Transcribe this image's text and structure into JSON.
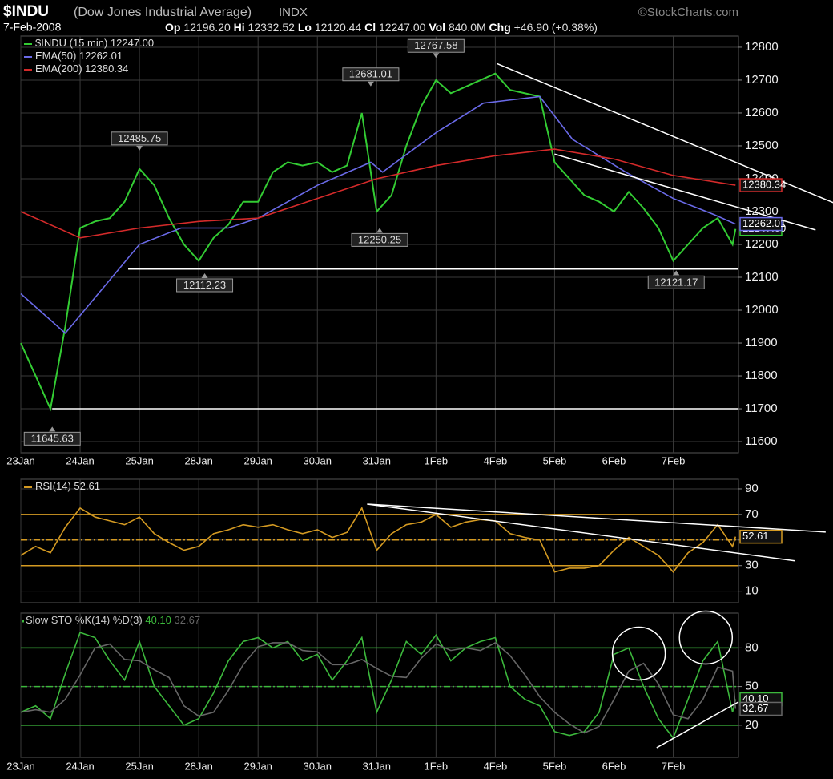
{
  "header": {
    "symbol": "$INDU",
    "name": "(Dow Jones Industrial Average)",
    "exchange": "INDX",
    "source": "©StockCharts.com",
    "date": "7-Feb-2008",
    "stats": [
      {
        "label": "Op",
        "value": "12196.20"
      },
      {
        "label": "Hi",
        "value": "12332.52"
      },
      {
        "label": "Lo",
        "value": "12120.44"
      },
      {
        "label": "Cl",
        "value": "12247.00"
      },
      {
        "label": "Vol",
        "value": "840.0M"
      },
      {
        "label": "Chg",
        "value": "+46.90 (+0.38%)"
      }
    ]
  },
  "chart_data": [
    {
      "type": "line",
      "x": [
        0,
        0.25,
        0.5,
        0.75,
        1,
        1.25,
        1.5,
        1.75,
        2,
        2.25,
        2.5,
        2.75,
        3,
        3.25,
        3.5,
        3.75,
        4,
        4.25,
        4.5,
        4.75,
        5,
        5.25,
        5.5,
        5.75,
        6,
        6.25,
        6.5,
        6.75,
        7,
        7.25,
        7.5,
        7.75,
        8,
        8.25,
        8.5,
        8.75,
        9,
        9.25,
        9.5,
        9.75,
        10,
        10.25,
        10.5,
        10.75,
        11,
        11.25,
        11.5,
        11.75,
        12,
        12.05
      ],
      "series": [
        {
          "name": "$INDU (15 min)",
          "color": "#33cc33",
          "last_label": "12247.00",
          "values": [
            11900,
            11800,
            11700,
            11950,
            12250,
            12270,
            12280,
            12330,
            12430,
            12380,
            12280,
            12200,
            12150,
            12220,
            12260,
            12330,
            12330,
            12420,
            12450,
            12440,
            12450,
            12420,
            12440,
            12600,
            12300,
            12350,
            12500,
            12620,
            12700,
            12660,
            12680,
            12700,
            12720,
            12670,
            12660,
            12650,
            12450,
            12400,
            12350,
            12330,
            12300,
            12360,
            12310,
            12250,
            12150,
            12200,
            12250,
            12280,
            12200,
            12247
          ]
        },
        {
          "name": "EMA(50)",
          "color": "#6a6ae8",
          "last_label": "12262.01",
          "x": [
            0,
            0.75,
            2,
            2.7,
            3.5,
            4,
            5,
            5.9,
            6.1,
            7,
            7.8,
            8.75,
            9.3,
            10.2,
            11,
            11.7,
            12.05
          ],
          "values": [
            12050,
            11930,
            12200,
            12250,
            12250,
            12280,
            12380,
            12450,
            12420,
            12540,
            12630,
            12650,
            12520,
            12420,
            12340,
            12290,
            12262.01
          ]
        },
        {
          "name": "EMA(200)",
          "color": "#d42a2a",
          "last_label": "12380.34",
          "x": [
            0,
            1,
            2,
            3,
            4,
            5,
            6,
            7,
            8,
            9,
            10,
            11,
            12.05
          ],
          "values": [
            12300,
            12220,
            12250,
            12270,
            12280,
            12340,
            12400,
            12440,
            12470,
            12490,
            12460,
            12410,
            12380.34
          ]
        }
      ],
      "xlim": [
        0,
        12.1
      ],
      "ylim": [
        11566,
        12834
      ],
      "yticks": [
        11600,
        11700,
        11800,
        11900,
        12000,
        12100,
        12200,
        12300,
        12400,
        12500,
        12600,
        12700,
        12800
      ],
      "xticks": [
        {
          "value": 0,
          "label": "23Jan"
        },
        {
          "value": 1,
          "label": "24Jan"
        },
        {
          "value": 2,
          "label": "25Jan"
        },
        {
          "value": 3,
          "label": "28Jan"
        },
        {
          "value": 4,
          "label": "29Jan"
        },
        {
          "value": 5,
          "label": "30Jan"
        },
        {
          "value": 6,
          "label": "31Jan"
        },
        {
          "value": 7,
          "label": "1Feb"
        },
        {
          "value": 8,
          "label": "4Feb"
        },
        {
          "value": 9,
          "label": "5Feb"
        },
        {
          "value": 10,
          "label": "6Feb"
        },
        {
          "value": 11,
          "label": "7Feb"
        }
      ],
      "xtick_labels": true,
      "grid": true,
      "annotations": [
        {
          "x": 7.0,
          "y": 12767.58,
          "position": "above"
        },
        {
          "x": 5.9,
          "y": 12681.01,
          "position": "above"
        },
        {
          "x": 2.0,
          "y": 12485.75,
          "position": "above"
        },
        {
          "x": 6.05,
          "y": 12250.25,
          "position": "below"
        },
        {
          "x": 3.1,
          "y": 12112.23,
          "position": "below"
        },
        {
          "x": 0.53,
          "y": 11645.63,
          "position": "below"
        },
        {
          "x": 11.05,
          "y": 12121.17,
          "position": "below"
        }
      ],
      "trendlines": [
        {
          "x": [
            8.03,
            13.7
          ],
          "y": [
            12750,
            12327
          ]
        },
        {
          "x": [
            9.0,
            13.4
          ],
          "y": [
            12475,
            12244
          ]
        },
        {
          "x": [
            1.81,
            12.1
          ],
          "y": [
            12125,
            12125
          ]
        },
        {
          "x": [
            0.53,
            12.1
          ],
          "y": [
            11700,
            11700
          ]
        }
      ]
    },
    {
      "type": "line",
      "x": [
        0,
        0.25,
        0.5,
        0.75,
        1,
        1.25,
        1.5,
        1.75,
        2,
        2.25,
        2.5,
        2.75,
        3,
        3.25,
        3.5,
        3.75,
        4,
        4.25,
        4.5,
        4.75,
        5,
        5.25,
        5.5,
        5.75,
        6,
        6.25,
        6.5,
        6.75,
        7,
        7.25,
        7.5,
        7.75,
        8,
        8.25,
        8.5,
        8.75,
        9,
        9.25,
        9.5,
        9.75,
        10,
        10.25,
        10.5,
        10.75,
        11,
        11.25,
        11.5,
        11.75,
        12,
        12.05
      ],
      "series": [
        {
          "name": "RSI(14)",
          "color": "#d49a22",
          "last_label": "52.61",
          "values": [
            38,
            45,
            40,
            60,
            75,
            68,
            65,
            62,
            68,
            55,
            48,
            42,
            45,
            55,
            58,
            62,
            60,
            62,
            58,
            55,
            58,
            52,
            56,
            75,
            42,
            55,
            62,
            64,
            70,
            60,
            64,
            66,
            65,
            55,
            52,
            50,
            25,
            28,
            28,
            30,
            42,
            52,
            45,
            38,
            25,
            40,
            48,
            62,
            45,
            52.61
          ]
        }
      ],
      "xlim": [
        0,
        12.1
      ],
      "ylim": [
        1,
        97.5
      ],
      "yticks": [
        10,
        30,
        50,
        70,
        90
      ],
      "xticks": [
        {
          "value": 0,
          "label": "23Jan"
        },
        {
          "value": 1,
          "label": "24Jan"
        },
        {
          "value": 2,
          "label": "25Jan"
        },
        {
          "value": 3,
          "label": "28Jan"
        },
        {
          "value": 4,
          "label": "29Jan"
        },
        {
          "value": 5,
          "label": "30Jan"
        },
        {
          "value": 6,
          "label": "31Jan"
        },
        {
          "value": 7,
          "label": "1Feb"
        },
        {
          "value": 8,
          "label": "4Feb"
        },
        {
          "value": 9,
          "label": "5Feb"
        },
        {
          "value": 10,
          "label": "6Feb"
        },
        {
          "value": 11,
          "label": "7Feb"
        }
      ],
      "xtick_labels": false,
      "grid": true,
      "reference_color": "#d49a22",
      "reference_lines": [
        {
          "value": 70,
          "style": "solid"
        },
        {
          "value": 50,
          "style": "dashed"
        },
        {
          "value": 30,
          "style": "solid"
        }
      ],
      "trendlines": [
        {
          "x": [
            5.84,
            13.57
          ],
          "y": [
            78.1,
            56.25
          ]
        },
        {
          "x": [
            5.84,
            13.05
          ],
          "y": [
            78.1,
            33.75
          ]
        }
      ]
    },
    {
      "type": "line",
      "title": "Slow STO",
      "x": [
        0,
        0.25,
        0.5,
        0.75,
        1,
        1.25,
        1.5,
        1.75,
        2,
        2.25,
        2.5,
        2.75,
        3,
        3.25,
        3.5,
        3.75,
        4,
        4.25,
        4.5,
        4.75,
        5,
        5.25,
        5.5,
        5.75,
        6,
        6.25,
        6.5,
        6.75,
        7,
        7.25,
        7.5,
        7.75,
        8,
        8.25,
        8.5,
        8.75,
        9,
        9.25,
        9.5,
        9.75,
        10,
        10.25,
        10.5,
        10.75,
        11,
        11.25,
        11.5,
        11.75,
        12,
        12.05
      ],
      "series": [
        {
          "name": "%K(14)",
          "color": "#3cb83c",
          "last_label": "40.10",
          "values": [
            30,
            35,
            25,
            60,
            92,
            88,
            70,
            55,
            85,
            50,
            35,
            20,
            25,
            45,
            70,
            85,
            88,
            80,
            85,
            70,
            75,
            55,
            70,
            88,
            30,
            55,
            85,
            75,
            90,
            70,
            80,
            85,
            88,
            50,
            40,
            35,
            15,
            12,
            15,
            30,
            75,
            80,
            50,
            25,
            10,
            40,
            70,
            85,
            30,
            40.1
          ]
        },
        {
          "name": "%D(3)",
          "color": "#666666",
          "last_label": "32.67",
          "values": [
            30,
            32,
            30,
            40,
            59,
            80,
            83,
            71,
            70,
            63,
            57,
            35,
            27,
            30,
            47,
            67,
            81,
            84,
            84,
            78,
            77,
            67,
            67,
            71,
            64,
            58,
            57,
            72,
            83,
            78,
            80,
            78,
            84,
            74,
            59,
            42,
            30,
            21,
            14,
            19,
            40,
            62,
            68,
            52,
            28,
            25,
            40,
            65,
            62,
            32.67
          ]
        }
      ],
      "legend_inline": true,
      "xlim": [
        0,
        12.1
      ],
      "ylim": [
        -5,
        107
      ],
      "yticks": [
        20,
        50,
        80
      ],
      "xticks": [
        {
          "value": 0,
          "label": "23Jan"
        },
        {
          "value": 1,
          "label": "24Jan"
        },
        {
          "value": 2,
          "label": "25Jan"
        },
        {
          "value": 3,
          "label": "28Jan"
        },
        {
          "value": 4,
          "label": "29Jan"
        },
        {
          "value": 5,
          "label": "30Jan"
        },
        {
          "value": 6,
          "label": "31Jan"
        },
        {
          "value": 7,
          "label": "1Feb"
        },
        {
          "value": 8,
          "label": "4Feb"
        },
        {
          "value": 9,
          "label": "5Feb"
        },
        {
          "value": 10,
          "label": "6Feb"
        },
        {
          "value": 11,
          "label": "7Feb"
        }
      ],
      "xtick_labels": true,
      "grid": true,
      "reference_color": "#3cb83c",
      "reference_lines": [
        {
          "value": 80,
          "style": "solid"
        },
        {
          "value": 50,
          "style": "dashed"
        },
        {
          "value": 20,
          "style": "solid"
        }
      ],
      "highlights": [
        {
          "x": 10.42,
          "y": 75.6
        },
        {
          "x": 11.55,
          "y": 88
        }
      ],
      "trendlines": [
        {
          "x": [
            10.72,
            12.1
          ],
          "y": [
            2.5,
            38
          ]
        }
      ]
    }
  ]
}
